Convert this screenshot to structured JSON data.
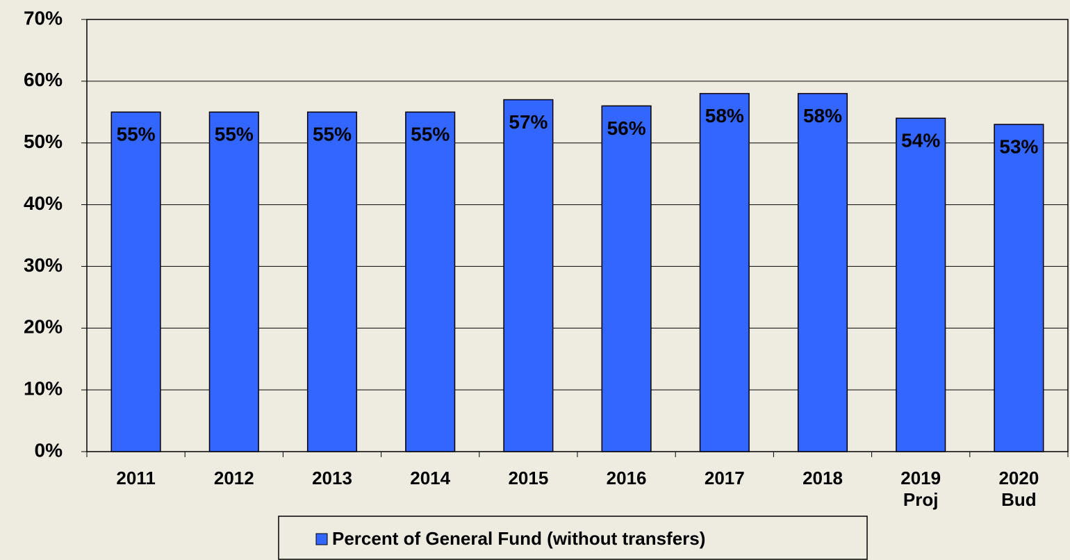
{
  "chart_data": {
    "type": "bar",
    "categories": [
      "2011",
      "2012",
      "2013",
      "2014",
      "2015",
      "2016",
      "2017",
      "2018",
      "2019\nProj",
      "2020\nBud"
    ],
    "series": [
      {
        "name": "Percent of General Fund (without transfers)",
        "color": "#3366ff",
        "values": [
          55,
          55,
          55,
          55,
          57,
          56,
          58,
          58,
          54,
          53
        ],
        "value_labels": [
          "55%",
          "55%",
          "55%",
          "55%",
          "57%",
          "56%",
          "58%",
          "58%",
          "54%",
          "53%"
        ]
      }
    ],
    "ylim": [
      0,
      70
    ],
    "yticks": [
      {
        "value": 0,
        "label": "0%"
      },
      {
        "value": 10,
        "label": "10%"
      },
      {
        "value": 20,
        "label": "20%"
      },
      {
        "value": 30,
        "label": "30%"
      },
      {
        "value": 40,
        "label": "40%"
      },
      {
        "value": 50,
        "label": "50%"
      },
      {
        "value": 60,
        "label": "60%"
      },
      {
        "value": 70,
        "label": "70%"
      }
    ],
    "grid": true,
    "legend": "bottom"
  }
}
